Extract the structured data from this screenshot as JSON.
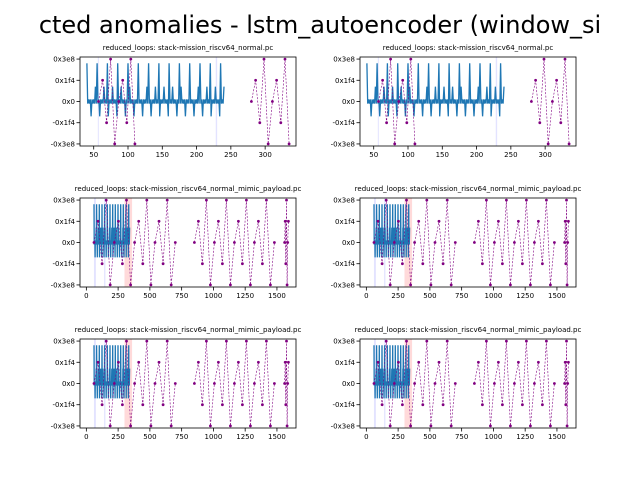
{
  "figure_title": "cted anomalies - lstm_autoencoder (window_si",
  "colors": {
    "signal": "#1f77b4",
    "anomaly": "#800080",
    "span_blue": "#ccccff",
    "span_red": "#ffbbbb"
  },
  "chart_data": [
    {
      "type": "line",
      "title": "reduced_loops: stack-mission_riscv64_normal.pc",
      "xlim": [
        30,
        345
      ],
      "ylim": [
        -1048576000,
        1048576000
      ],
      "xticks": [
        50,
        100,
        150,
        200,
        250,
        300
      ],
      "yticks": [
        {
          "value": 1000000000,
          "label": "0x3e8"
        },
        {
          "value": 500000000,
          "label": "0x1f4"
        },
        {
          "value": 0,
          "label": "0x0"
        },
        {
          "value": -500000000,
          "label": "-0x1f4"
        },
        {
          "value": -1000000000,
          "label": "-0x3e8"
        }
      ],
      "anomaly_ranges": [
        [
          57,
          110
        ],
        [
          280,
          335
        ]
      ],
      "highlight_spans": [
        {
          "x0": 56,
          "x1": 57,
          "color": "span_blue"
        },
        {
          "x0": 228,
          "x1": 230,
          "color": "span_blue"
        }
      ],
      "signal_range": [
        40,
        240
      ]
    },
    {
      "type": "line",
      "title": "reduced_loops: stack-mission_riscv64_normal.pc",
      "xlim": [
        30,
        345
      ],
      "ylim": [
        -1048576000,
        1048576000
      ],
      "xticks": [
        50,
        100,
        150,
        200,
        250,
        300
      ],
      "yticks": [
        {
          "value": 1000000000,
          "label": "0x3e8"
        },
        {
          "value": 500000000,
          "label": "0x1f4"
        },
        {
          "value": 0,
          "label": "0x0"
        },
        {
          "value": -500000000,
          "label": "-0x1f4"
        },
        {
          "value": -1000000000,
          "label": "-0x3e8"
        }
      ],
      "anomaly_ranges": [
        [
          57,
          110
        ],
        [
          280,
          335
        ]
      ],
      "highlight_spans": [
        {
          "x0": 56,
          "x1": 57,
          "color": "span_blue"
        },
        {
          "x0": 228,
          "x1": 230,
          "color": "span_blue"
        }
      ],
      "signal_range": [
        40,
        240
      ]
    },
    {
      "type": "line",
      "title": "reduced_loops: stack-mission_riscv64_normal_mimic_payload.pc",
      "xlim": [
        -50,
        1650
      ],
      "ylim": [
        -1048576000,
        1048576000
      ],
      "xticks": [
        0,
        250,
        500,
        750,
        1000,
        1250,
        1500
      ],
      "yticks": [
        {
          "value": 1000000000,
          "label": "0x3e8"
        },
        {
          "value": 500000000,
          "label": "0x1f4"
        },
        {
          "value": 0,
          "label": "0x0"
        },
        {
          "value": -500000000,
          "label": "-0x1f4"
        },
        {
          "value": -1000000000,
          "label": "-0x3e8"
        }
      ],
      "anomaly_ranges": [
        [
          60,
          700
        ],
        [
          850,
          1480
        ],
        [
          1560,
          1590
        ]
      ],
      "highlight_spans": [
        {
          "x0": 60,
          "x1": 75,
          "color": "span_blue"
        },
        {
          "x0": 140,
          "x1": 150,
          "color": "span_blue"
        },
        {
          "x0": 300,
          "x1": 360,
          "color": "span_red"
        }
      ],
      "signal_range": [
        60,
        340
      ]
    },
    {
      "type": "line",
      "title": "reduced_loops: stack-mission_riscv64_normal_mimic_payload.pc",
      "xlim": [
        -50,
        1650
      ],
      "ylim": [
        -1048576000,
        1048576000
      ],
      "xticks": [
        0,
        250,
        500,
        750,
        1000,
        1250,
        1500
      ],
      "yticks": [
        {
          "value": 1000000000,
          "label": "0x3e8"
        },
        {
          "value": 500000000,
          "label": "0x1f4"
        },
        {
          "value": 0,
          "label": "0x0"
        },
        {
          "value": -500000000,
          "label": "-0x1f4"
        },
        {
          "value": -1000000000,
          "label": "-0x3e8"
        }
      ],
      "anomaly_ranges": [
        [
          60,
          700
        ],
        [
          850,
          1480
        ],
        [
          1560,
          1590
        ]
      ],
      "highlight_spans": [
        {
          "x0": 60,
          "x1": 75,
          "color": "span_blue"
        },
        {
          "x0": 140,
          "x1": 150,
          "color": "span_blue"
        },
        {
          "x0": 300,
          "x1": 360,
          "color": "span_red"
        }
      ],
      "signal_range": [
        60,
        340
      ]
    },
    {
      "type": "line",
      "title": "reduced_loops: stack-mission_riscv64_normal_mimic_payload.pc",
      "xlim": [
        -50,
        1650
      ],
      "ylim": [
        -1048576000,
        1048576000
      ],
      "xticks": [
        0,
        250,
        500,
        750,
        1000,
        1250,
        1500
      ],
      "yticks": [
        {
          "value": 1000000000,
          "label": "0x3e8"
        },
        {
          "value": 500000000,
          "label": "0x1f4"
        },
        {
          "value": 0,
          "label": "0x0"
        },
        {
          "value": -500000000,
          "label": "-0x1f4"
        },
        {
          "value": -1000000000,
          "label": "-0x3e8"
        }
      ],
      "anomaly_ranges": [
        [
          60,
          700
        ],
        [
          850,
          1480
        ],
        [
          1560,
          1590
        ]
      ],
      "highlight_spans": [
        {
          "x0": 60,
          "x1": 75,
          "color": "span_blue"
        },
        {
          "x0": 140,
          "x1": 150,
          "color": "span_blue"
        },
        {
          "x0": 300,
          "x1": 360,
          "color": "span_red"
        }
      ],
      "signal_range": [
        60,
        340
      ]
    },
    {
      "type": "line",
      "title": "reduced_loops: stack-mission_riscv64_normal_mimic_payload.pc",
      "xlim": [
        -50,
        1650
      ],
      "ylim": [
        -1048576000,
        1048576000
      ],
      "xticks": [
        0,
        250,
        500,
        750,
        1000,
        1250,
        1500
      ],
      "yticks": [
        {
          "value": 1000000000,
          "label": "0x3e8"
        },
        {
          "value": 500000000,
          "label": "0x1f4"
        },
        {
          "value": 0,
          "label": "0x0"
        },
        {
          "value": -500000000,
          "label": "-0x1f4"
        },
        {
          "value": -1000000000,
          "label": "-0x3e8"
        }
      ],
      "anomaly_ranges": [
        [
          60,
          700
        ],
        [
          850,
          1480
        ],
        [
          1560,
          1590
        ]
      ],
      "highlight_spans": [
        {
          "x0": 60,
          "x1": 75,
          "color": "span_blue"
        },
        {
          "x0": 140,
          "x1": 150,
          "color": "span_blue"
        },
        {
          "x0": 300,
          "x1": 360,
          "color": "span_red"
        }
      ],
      "signal_range": [
        60,
        340
      ]
    }
  ]
}
